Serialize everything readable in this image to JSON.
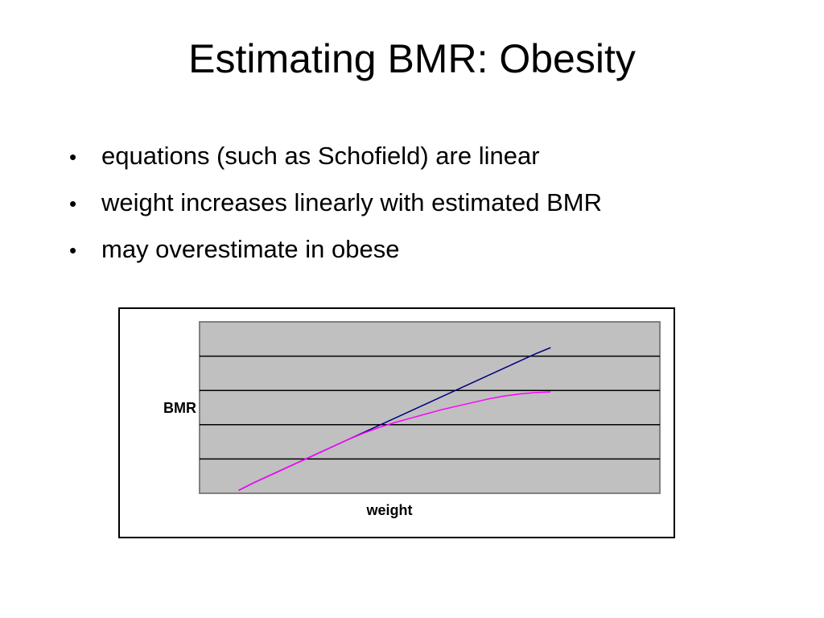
{
  "slide": {
    "title": "Estimating BMR: Obesity",
    "bullets": [
      "equations (such as Schofield) are linear",
      "weight increases linearly with estimated BMR",
      "may overestimate in obese"
    ],
    "bullet_symbol": "•"
  },
  "chart_data": {
    "type": "line",
    "xlabel": "weight",
    "ylabel": "BMR",
    "grid": true,
    "plot_background": "#c0c0c0",
    "x": [
      0,
      1,
      2,
      3,
      4,
      5,
      6,
      7,
      8,
      9,
      10,
      11,
      12,
      13,
      14,
      15,
      16,
      17,
      18,
      19,
      20
    ],
    "series": [
      {
        "color": "#000080",
        "values": [
          0.0,
          0.55,
          1.05,
          1.55,
          2.05,
          2.55,
          3.05,
          3.55,
          4.05,
          4.55,
          5.05,
          5.55,
          6.05,
          6.55,
          7.05,
          7.55,
          8.05,
          8.55,
          9.05,
          9.55,
          10.0
        ]
      },
      {
        "color": "#ff00ff",
        "values": [
          0.0,
          0.55,
          1.05,
          1.55,
          2.05,
          2.55,
          3.05,
          3.55,
          4.0,
          4.4,
          4.75,
          5.05,
          5.35,
          5.65,
          5.9,
          6.15,
          6.4,
          6.6,
          6.75,
          6.85,
          6.9
        ]
      }
    ],
    "xlim": [
      -2.5,
      27
    ],
    "ylim": [
      -0.2,
      11.8
    ]
  }
}
